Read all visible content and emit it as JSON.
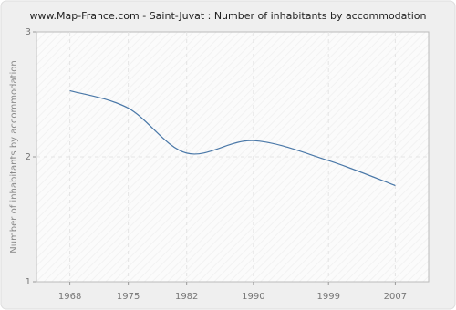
{
  "chart_data": {
    "type": "line",
    "title": "www.Map-France.com - Saint-Juvat : Number of inhabitants by accommodation",
    "y_label": "Number of inhabitants by accommodation",
    "x": [
      1968,
      1975,
      1982,
      1990,
      1999,
      2007
    ],
    "series": [
      {
        "name": "Saint-Juvat",
        "color": "#4a78a8",
        "values": [
          2.53,
          2.39,
          2.03,
          2.13,
          1.97,
          1.77
        ]
      }
    ],
    "xlim": [
      1964,
      2011
    ],
    "xticks": [
      1968,
      1975,
      1982,
      1990,
      1999,
      2007
    ],
    "ylim": [
      1,
      3
    ],
    "yticks": [
      1,
      2,
      3
    ],
    "grid": true
  }
}
